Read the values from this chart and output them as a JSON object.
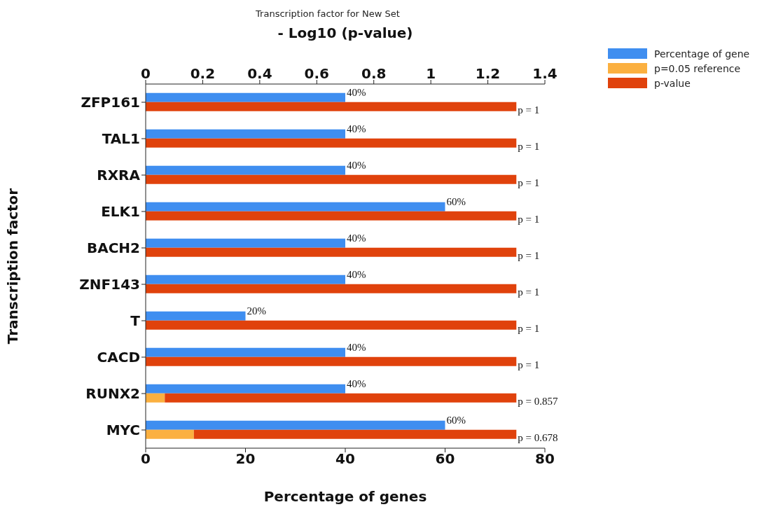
{
  "chart_data": {
    "type": "bar",
    "orientation": "horizontal",
    "title": "Transcription factor for New Set",
    "xlabel": "Percentage of genes",
    "x2label": "- Log10 (p-value)",
    "ylabel": "Transcription factor",
    "categories": [
      "ZFP161",
      "TAL1",
      "RXRA",
      "ELK1",
      "BACH2",
      "ZNF143",
      "T",
      "CACD",
      "RUNX2",
      "MYC"
    ],
    "xlim": [
      0,
      80
    ],
    "xticks": [
      0,
      20,
      40,
      60,
      80
    ],
    "x2lim": [
      0,
      1.4
    ],
    "x2ticks": [
      0,
      0.2,
      0.4,
      0.6,
      0.8,
      1,
      1.2,
      1.4
    ],
    "series": [
      {
        "name": "Percentage of gene",
        "color": "#3f8ef0",
        "values": [
          40,
          40,
          40,
          60,
          40,
          40,
          20,
          40,
          40,
          60
        ],
        "value_labels": [
          "40%",
          "40%",
          "40%",
          "60%",
          "40%",
          "40%",
          "20%",
          "40%",
          "40%",
          "60%"
        ]
      },
      {
        "name": "p=0.05 reference",
        "color": "#fbb040",
        "axis": "x2",
        "values": [
          null,
          null,
          null,
          null,
          null,
          null,
          null,
          null,
          0.067,
          0.169
        ]
      },
      {
        "name": "p-value",
        "color": "#e0420c",
        "axis": "x2",
        "base": [
          0,
          0,
          0,
          0,
          0,
          0,
          0,
          0,
          0.067,
          0.169
        ],
        "values": [
          1.3,
          1.3,
          1.3,
          1.3,
          1.3,
          1.3,
          1.3,
          1.3,
          1.233,
          1.131
        ]
      }
    ],
    "annotations": [
      "p = 1",
      "p = 1",
      "p = 1",
      "p = 1",
      "p = 1",
      "p = 1",
      "p = 1",
      "p = 1",
      "p = 0.857",
      "p = 0.678"
    ],
    "grid": false,
    "legend": "top right"
  }
}
